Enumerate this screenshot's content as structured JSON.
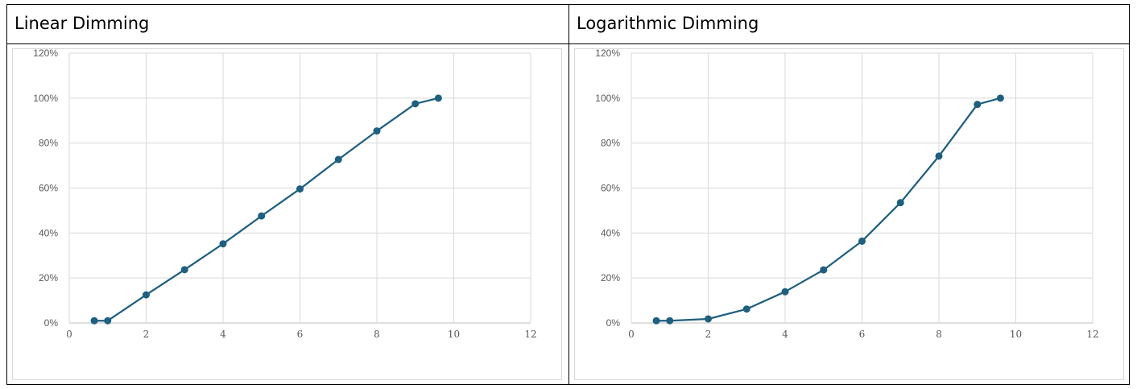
{
  "headers": {
    "left": "Linear Dimming",
    "right": "Logarithmic Dimming"
  },
  "colors": {
    "series": "#1f5f7f",
    "grid": "#d9d9d9",
    "tick": "#595959"
  },
  "chart_data": [
    {
      "type": "line",
      "title": "",
      "xlabel": "",
      "ylabel": "",
      "xlim": [
        0,
        12
      ],
      "ylim": [
        0,
        1.2
      ],
      "x_ticks": [
        "0",
        "2",
        "4",
        "6",
        "8",
        "10",
        "12"
      ],
      "y_ticks": [
        "0%",
        "20%",
        "40%",
        "60%",
        "80%",
        "100%",
        "120%"
      ],
      "grid": true,
      "x": [
        0.65,
        1,
        2,
        3,
        4,
        5,
        6,
        7,
        8,
        9,
        9.6
      ],
      "y": [
        0.01,
        0.01,
        0.125,
        0.237,
        0.352,
        0.476,
        0.596,
        0.727,
        0.854,
        0.975,
        1.0
      ]
    },
    {
      "type": "line",
      "title": "",
      "xlabel": "",
      "ylabel": "",
      "xlim": [
        0,
        12
      ],
      "ylim": [
        0,
        1.2
      ],
      "x_ticks": [
        "0",
        "2",
        "4",
        "6",
        "8",
        "10",
        "12"
      ],
      "y_ticks": [
        "0%",
        "20%",
        "40%",
        "60%",
        "80%",
        "100%",
        "120%"
      ],
      "grid": true,
      "x": [
        0.65,
        1,
        2,
        3,
        4,
        5,
        6,
        7,
        8,
        9,
        9.6
      ],
      "y": [
        0.01,
        0.01,
        0.018,
        0.062,
        0.139,
        0.236,
        0.364,
        0.535,
        0.742,
        0.972,
        1.0
      ]
    }
  ]
}
